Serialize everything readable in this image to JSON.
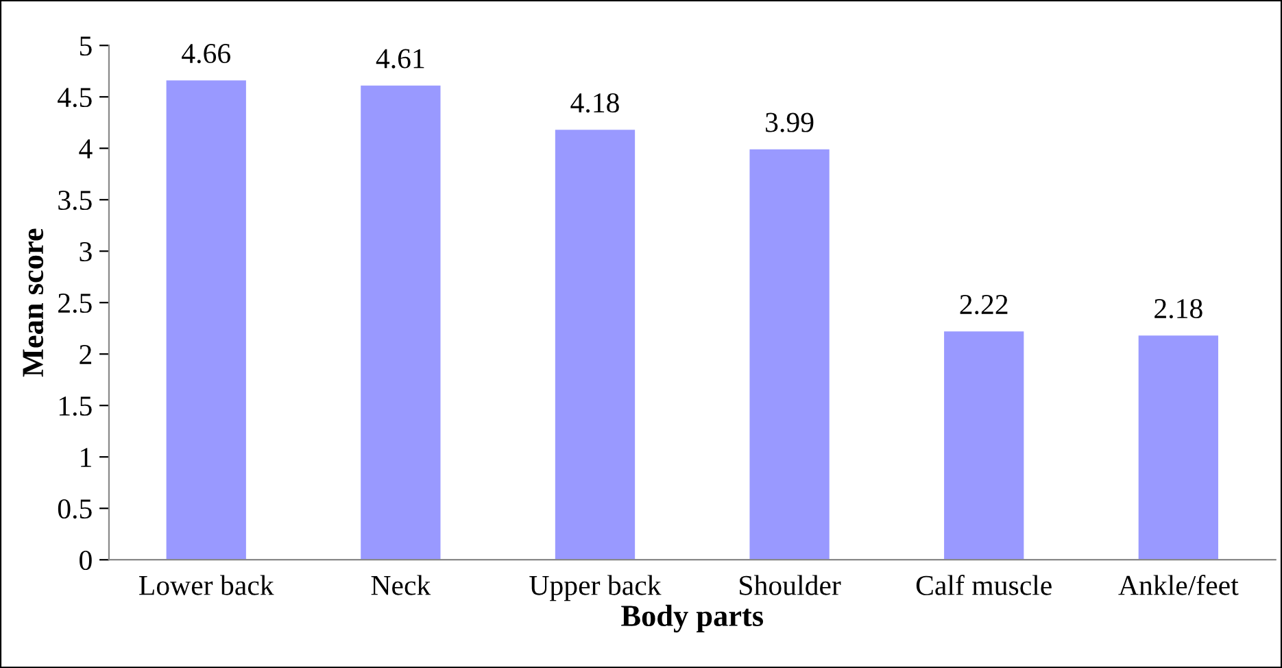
{
  "chart_data": {
    "type": "bar",
    "xlabel": "Body parts",
    "ylabel": "Mean score",
    "categories": [
      "Lower back",
      "Neck",
      "Upper back",
      "Shoulder",
      "Calf muscle",
      "Ankle/feet"
    ],
    "values": [
      4.66,
      4.61,
      4.18,
      3.99,
      2.22,
      2.18
    ],
    "color": "#9999ff",
    "ylim": [
      0,
      5
    ],
    "yticks": [
      0,
      0.5,
      1,
      1.5,
      2,
      2.5,
      3,
      3.5,
      4,
      4.5,
      5
    ],
    "data_labels": true,
    "grid": false,
    "legend": false
  }
}
